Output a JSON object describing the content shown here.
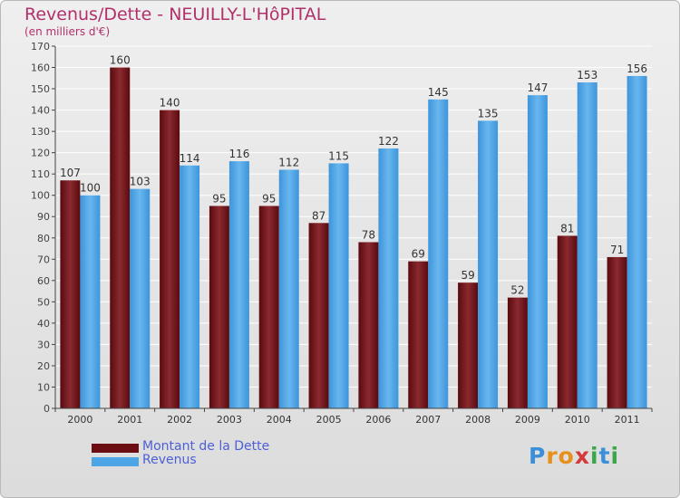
{
  "header": {
    "title": "Revenus/Dette - NEUILLY-L'HôPITAL",
    "subtitle": "(en milliers d'€)"
  },
  "legend": {
    "items": [
      {
        "label": "Montant de la Dette",
        "color": "#6b0d12"
      },
      {
        "label": "Revenus",
        "color": "#4ea5e6"
      }
    ]
  },
  "logo": {
    "letters": [
      "P",
      "r",
      "o",
      "x",
      "i",
      "t",
      "i"
    ],
    "colors": [
      "#3a8fd8",
      "#e8901c",
      "#e8901c",
      "#d43a3a",
      "#3aa84a",
      "#3a8fd8",
      "#3aa84a"
    ]
  },
  "chart_data": {
    "type": "bar",
    "categories": [
      "2000",
      "2001",
      "2002",
      "2003",
      "2004",
      "2005",
      "2006",
      "2007",
      "2008",
      "2009",
      "2010",
      "2011"
    ],
    "series": [
      {
        "name": "Montant de la Dette",
        "color": "#7a1a20",
        "values": [
          107,
          160,
          140,
          95,
          95,
          87,
          78,
          69,
          59,
          52,
          81,
          71
        ]
      },
      {
        "name": "Revenus",
        "color": "#4ea5e6",
        "values": [
          100,
          103,
          114,
          116,
          112,
          115,
          122,
          145,
          135,
          147,
          153,
          156
        ]
      }
    ],
    "ylim": [
      0,
      170
    ],
    "yticks": [
      0,
      10,
      20,
      30,
      40,
      50,
      60,
      70,
      80,
      90,
      100,
      110,
      120,
      130,
      140,
      150,
      160,
      170
    ],
    "grid": true
  }
}
